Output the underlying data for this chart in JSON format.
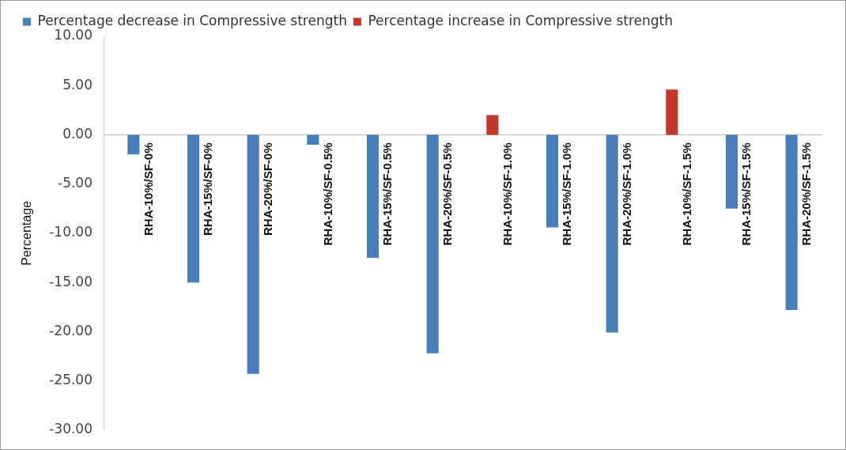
{
  "chart_data": {
    "type": "bar",
    "ylabel": "Percentage",
    "categories": [
      "RHA-10%/SF-0%",
      "RHA-15%/SF-0%",
      "RHA-20%/SF-0%",
      "RHA-10%/SF-0.5%",
      "RHA-15%/SF-0.5%",
      "RHA-20%/SF-0.5%",
      "RHA-10%/SF-1.0%",
      "RHA-15%/SF-1.0%",
      "RHA-20%/SF-1.0%",
      "RHA-10%/SF-1.5%",
      "RHA-15%/SF-1.5%",
      "RHA-20%/SF-1.5%"
    ],
    "series": [
      {
        "name": "Percentage decrease in Compressive strength",
        "color": "#4a7ebb",
        "values": [
          -2.0,
          -15.0,
          -24.3,
          -1.0,
          -12.5,
          -22.2,
          null,
          -9.4,
          -20.1,
          null,
          -7.5,
          -17.8
        ]
      },
      {
        "name": "Percentage increase in Compressive strength",
        "color": "#c0392b",
        "values": [
          null,
          null,
          null,
          null,
          null,
          null,
          2.0,
          null,
          null,
          4.6,
          null,
          null
        ]
      }
    ],
    "ylim": [
      -30,
      10
    ],
    "yticks": [
      {
        "value": 10,
        "label": "10.00"
      },
      {
        "value": 5,
        "label": "5.00"
      },
      {
        "value": 0,
        "label": "0.00"
      },
      {
        "value": -5,
        "label": "-5.00"
      },
      {
        "value": -10,
        "label": "-10.00"
      },
      {
        "value": -15,
        "label": "-15.00"
      },
      {
        "value": -20,
        "label": "-20.00"
      },
      {
        "value": -25,
        "label": "-25.00"
      },
      {
        "value": -30,
        "label": "-30.00"
      }
    ],
    "grid": false,
    "legend": "top"
  }
}
